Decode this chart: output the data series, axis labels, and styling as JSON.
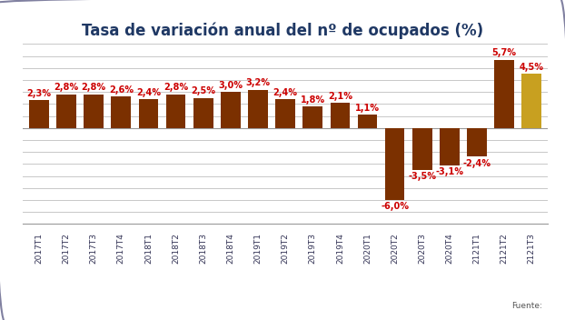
{
  "title": "Tasa de variación anual del nº de ocupados (%)",
  "categories": [
    "2017T1",
    "2017T2",
    "2017T3",
    "2017T4",
    "2018T1",
    "2018T2",
    "2018T3",
    "2018T4",
    "2019T1",
    "2019T2",
    "2019T3",
    "2019T4",
    "2020T1",
    "2020T2",
    "2020T3",
    "2020T4",
    "2121T1",
    "2121T2",
    "2121T3"
  ],
  "values": [
    2.3,
    2.8,
    2.8,
    2.6,
    2.4,
    2.8,
    2.5,
    3.0,
    3.2,
    2.4,
    1.8,
    2.1,
    1.1,
    -6.0,
    -3.5,
    -3.1,
    -2.4,
    5.7,
    4.5
  ],
  "bar_colors": [
    "#7B3000",
    "#7B3000",
    "#7B3000",
    "#7B3000",
    "#7B3000",
    "#7B3000",
    "#7B3000",
    "#7B3000",
    "#7B3000",
    "#7B3000",
    "#7B3000",
    "#7B3000",
    "#7B3000",
    "#7B3000",
    "#7B3000",
    "#7B3000",
    "#7B3000",
    "#7B3000",
    "#C8A020"
  ],
  "label_color": "#CC0000",
  "background_color": "#FFFFFF",
  "grid_color": "#C8C8C8",
  "border_color": "#8080A0",
  "title_color": "#1F3864",
  "ylim": [
    -7.8,
    7.2
  ],
  "source_text": "Fuente:",
  "title_fontsize": 12,
  "label_fontsize": 7,
  "tick_fontsize": 6.5
}
